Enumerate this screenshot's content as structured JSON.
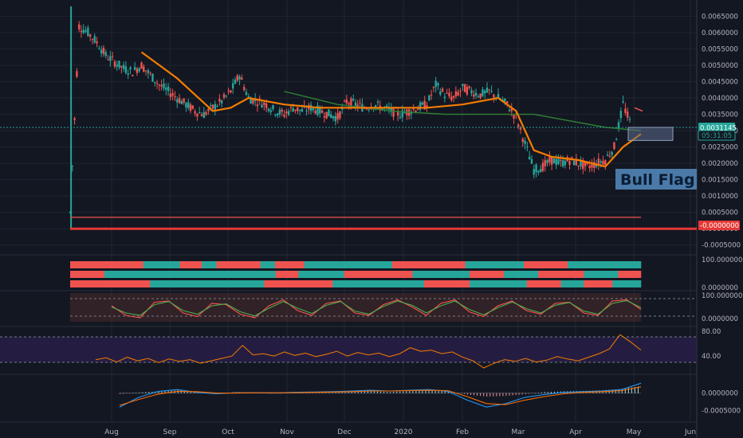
{
  "chart_data": [
    {
      "type": "candlestick",
      "panel": "price",
      "y_ticks": [
        0.0065,
        0.006,
        0.0055,
        0.005,
        0.0045,
        0.004,
        0.0035,
        0.003,
        0.0025,
        0.002,
        0.0015,
        0.001,
        0.0005,
        0.0,
        -0.0005
      ],
      "y_tick_labels": [
        "0.0065000",
        "0.0060000",
        "0.0055000",
        "0.0050000",
        "0.0045000",
        "0.0040000",
        "0.0035000",
        "0.0030000",
        "0.0025000",
        "0.0020000",
        "0.0015000",
        "0.0010000",
        "0.0005000",
        "0.0000000",
        "-0.0005000"
      ],
      "ylim": [
        -0.00075,
        0.00685
      ],
      "x_labels": [
        "Aug",
        "Sep",
        "Oct",
        "Nov",
        "Dec",
        "2020",
        "Feb",
        "Mar",
        "Apr",
        "May",
        "Jun"
      ],
      "last_price_label": "0.0031145",
      "countdown_label": "05:31:05",
      "current_price_label": "-0.0000000",
      "annotation": "Bull Flag",
      "close_path": [
        [
          0,
          0.0005
        ],
        [
          1,
          0.0062
        ],
        [
          2,
          0.006
        ],
        [
          3,
          0.0057
        ],
        [
          4,
          0.0053
        ],
        [
          5,
          0.0051
        ],
        [
          6,
          0.0049
        ],
        [
          7,
          0.0048
        ],
        [
          8,
          0.005
        ],
        [
          9,
          0.0047
        ],
        [
          10,
          0.0044
        ],
        [
          11,
          0.0042
        ],
        [
          12,
          0.004
        ],
        [
          13,
          0.0038
        ],
        [
          14,
          0.0036
        ],
        [
          15,
          0.0035
        ],
        [
          16,
          0.0037
        ],
        [
          17,
          0.0039
        ],
        [
          18,
          0.0042
        ],
        [
          19,
          0.0047
        ],
        [
          20,
          0.004
        ],
        [
          21,
          0.0039
        ],
        [
          22,
          0.0038
        ],
        [
          23,
          0.0036
        ],
        [
          24,
          0.0035
        ],
        [
          25,
          0.0037
        ],
        [
          26,
          0.0036
        ],
        [
          27,
          0.0037
        ],
        [
          28,
          0.0036
        ],
        [
          29,
          0.0035
        ],
        [
          30,
          0.0034
        ],
        [
          31,
          0.0039
        ],
        [
          32,
          0.0038
        ],
        [
          33,
          0.0037
        ],
        [
          34,
          0.0038
        ],
        [
          35,
          0.0037
        ],
        [
          36,
          0.0036
        ],
        [
          37,
          0.0035
        ],
        [
          38,
          0.0036
        ],
        [
          39,
          0.0037
        ],
        [
          40,
          0.0038
        ],
        [
          41,
          0.0044
        ],
        [
          42,
          0.0041
        ],
        [
          43,
          0.004
        ],
        [
          44,
          0.0043
        ],
        [
          45,
          0.0042
        ],
        [
          46,
          0.0041
        ],
        [
          47,
          0.0042
        ],
        [
          48,
          0.004
        ],
        [
          49,
          0.0038
        ],
        [
          50,
          0.0034
        ],
        [
          51,
          0.0026
        ],
        [
          52,
          0.0018
        ],
        [
          53,
          0.0019
        ],
        [
          54,
          0.0021
        ],
        [
          55,
          0.002
        ],
        [
          56,
          0.0021
        ],
        [
          57,
          0.002
        ],
        [
          58,
          0.0019
        ],
        [
          59,
          0.002
        ],
        [
          60,
          0.0021
        ],
        [
          61,
          0.0025
        ],
        [
          62,
          0.0038
        ],
        [
          63,
          0.0031
        ]
      ],
      "ma_fast": [
        [
          8,
          0.0054
        ],
        [
          10,
          0.005
        ],
        [
          12,
          0.0046
        ],
        [
          14,
          0.0041
        ],
        [
          16,
          0.0036
        ],
        [
          18,
          0.0037
        ],
        [
          20,
          0.004
        ],
        [
          24,
          0.0038
        ],
        [
          28,
          0.0037
        ],
        [
          32,
          0.0037
        ],
        [
          36,
          0.0037
        ],
        [
          40,
          0.0037
        ],
        [
          44,
          0.0038
        ],
        [
          48,
          0.004
        ],
        [
          50,
          0.0036
        ],
        [
          52,
          0.0024
        ],
        [
          54,
          0.0022
        ],
        [
          57,
          0.0021
        ],
        [
          60,
          0.0019
        ],
        [
          62,
          0.0025
        ],
        [
          64,
          0.0029
        ]
      ],
      "ma_slow": [
        [
          24,
          0.0042
        ],
        [
          30,
          0.0038
        ],
        [
          36,
          0.0036
        ],
        [
          42,
          0.0035
        ],
        [
          48,
          0.0035
        ],
        [
          52,
          0.0035
        ],
        [
          56,
          0.0033
        ],
        [
          60,
          0.0031
        ],
        [
          64,
          0.003
        ]
      ],
      "horizontal_levels": [
        0.00035,
        0.0
      ]
    },
    {
      "type": "heatmap",
      "panel": "trend-bars",
      "y_tick_labels": [
        "100.0000000",
        "0.0000000"
      ],
      "rows": [
        [
          [
            "r",
            10
          ],
          [
            "t",
            5
          ],
          [
            "r",
            3
          ],
          [
            "t",
            2
          ],
          [
            "r",
            6
          ],
          [
            "t",
            2
          ],
          [
            "r",
            4
          ],
          [
            "t",
            12
          ],
          [
            "r",
            10
          ],
          [
            "t",
            8
          ],
          [
            "r",
            6
          ],
          [
            "t",
            10
          ]
        ],
        [
          [
            "r",
            6
          ],
          [
            "t",
            30
          ],
          [
            "r",
            4
          ],
          [
            "t",
            8
          ],
          [
            "r",
            12
          ],
          [
            "t",
            10
          ],
          [
            "r",
            6
          ],
          [
            "t",
            6
          ],
          [
            "r",
            8
          ],
          [
            "t",
            6
          ],
          [
            "r",
            4
          ]
        ],
        [
          [
            "r",
            14
          ],
          [
            "t",
            20
          ],
          [
            "r",
            12
          ],
          [
            "t",
            16
          ],
          [
            "r",
            8
          ],
          [
            "t",
            10
          ],
          [
            "r",
            6
          ],
          [
            "t",
            4
          ],
          [
            "r",
            5
          ],
          [
            "t",
            5
          ]
        ]
      ]
    },
    {
      "type": "line",
      "panel": "stochastic",
      "y_tick_labels": [
        "100.0000000",
        "0.0000000"
      ],
      "ylim": [
        0,
        100
      ],
      "series": [
        {
          "name": "",
          "color": "#ff5252",
          "values": [
            60,
            20,
            10,
            75,
            80,
            30,
            15,
            70,
            65,
            25,
            10,
            60,
            85,
            40,
            20,
            70,
            80,
            30,
            20,
            65,
            85,
            55,
            20,
            70,
            85,
            35,
            15,
            60,
            80,
            40,
            25,
            70,
            75,
            30,
            20,
            80,
            85,
            45
          ]
        },
        {
          "name": "",
          "color": "#4caf50",
          "values": [
            55,
            30,
            20,
            65,
            78,
            40,
            25,
            60,
            68,
            35,
            18,
            50,
            78,
            50,
            28,
            62,
            78,
            38,
            25,
            58,
            80,
            62,
            30,
            60,
            80,
            45,
            22,
            52,
            76,
            48,
            30,
            62,
            74,
            38,
            25,
            70,
            82,
            52
          ]
        }
      ]
    },
    {
      "type": "line",
      "panel": "rsi",
      "y_tick_labels": [
        "80.00",
        "40.00"
      ],
      "ylim": [
        20,
        95
      ],
      "series": [
        {
          "name": "",
          "color": "#f57c00",
          "values": [
            42,
            45,
            38,
            46,
            40,
            44,
            37,
            43,
            39,
            42,
            36,
            40,
            44,
            48,
            66,
            50,
            52,
            48,
            55,
            49,
            53,
            47,
            51,
            56,
            48,
            54,
            50,
            53,
            47,
            52,
            62,
            56,
            58,
            52,
            55,
            46,
            40,
            28,
            36,
            42,
            39,
            44,
            38,
            41,
            47,
            43,
            40,
            46,
            52,
            60,
            84,
            72,
            58
          ]
        }
      ]
    },
    {
      "type": "bar",
      "panel": "macd",
      "y_tick_labels": [
        "0.0000000",
        "-0.0005000"
      ],
      "ylim": [
        -0.0006,
        0.0004
      ],
      "histogram": [
        -3e-05,
        2e-05,
        5e-05,
        8e-05,
        4e-05,
        -2e-05,
        3e-05,
        2e-05,
        -1e-05,
        2e-05,
        3e-05,
        2e-05,
        4e-05,
        5e-05,
        3e-05,
        6e-05,
        8e-05,
        5e-05,
        -4e-05,
        -0.0001,
        -8e-05,
        -3e-05,
        3e-05,
        5e-05,
        6e-05,
        8e-05,
        0.00012,
        0.0002
      ],
      "macd_line": [
        -0.0004,
        -0.00012,
        5e-05,
        0.0001,
        2e-05,
        -2e-05,
        1e-05,
        1e-05,
        0.0,
        2e-05,
        3e-05,
        4e-05,
        6e-05,
        8e-05,
        6e-05,
        8e-05,
        0.0001,
        5e-05,
        -0.0002,
        -0.0004,
        -0.0003,
        -0.00012,
        -4e-05,
        2e-05,
        4e-05,
        6e-05,
        0.0001,
        0.00028
      ],
      "signal_line": [
        -0.00035,
        -0.00018,
        -3e-05,
        5e-05,
        4e-05,
        0.0,
        0.0,
        1e-05,
        1e-05,
        1e-05,
        2e-05,
        3e-05,
        4e-05,
        6e-05,
        6e-05,
        7e-05,
        8e-05,
        7e-05,
        -0.0001,
        -0.0003,
        -0.00033,
        -0.0002,
        -0.0001,
        -2e-05,
        2e-05,
        4e-05,
        7e-05,
        0.00018
      ]
    }
  ]
}
